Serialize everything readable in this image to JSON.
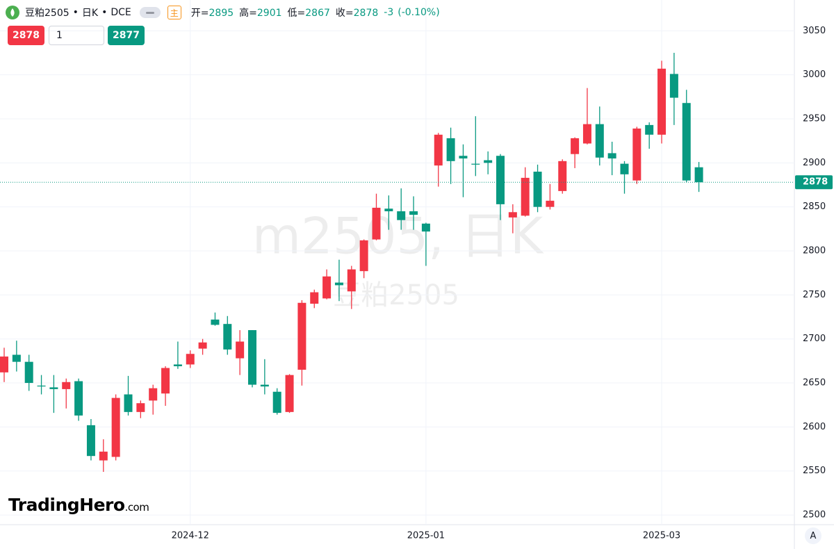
{
  "header": {
    "symbol": "豆粕2505",
    "period": "日K",
    "exchange": "DCE",
    "mode_badge": "主",
    "ohlc": [
      {
        "label": "开=",
        "value": "2895"
      },
      {
        "label": "高=",
        "value": "2901"
      },
      {
        "label": "低=",
        "value": "2867"
      },
      {
        "label": "收=",
        "value": "2878"
      }
    ],
    "change": "-3",
    "change_pct": "(-0.10%)",
    "sell_price": "2878",
    "quantity": "1",
    "buy_price": "2877"
  },
  "watermark": {
    "line1": "m2505, 日K",
    "line2": "豆粕2505"
  },
  "logo": {
    "brand": "TradingHero",
    "suffix": ".com"
  },
  "scale_button": "A",
  "chart_data": {
    "type": "candlestick",
    "categories": [
      null,
      null,
      null,
      null,
      null,
      null,
      null,
      null,
      null,
      null,
      null,
      null,
      null,
      null,
      null,
      "2024-12",
      null,
      null,
      null,
      null,
      null,
      null,
      null,
      null,
      null,
      null,
      null,
      null,
      null,
      null,
      null,
      null,
      null,
      null,
      "2025-01",
      null,
      null,
      null,
      null,
      null,
      null,
      null,
      null,
      null,
      null,
      null,
      null,
      null,
      null,
      null,
      null,
      null,
      null,
      "2025-03",
      null,
      null,
      null
    ],
    "open": [
      2662,
      2682,
      2674,
      2647,
      2645,
      2643,
      2652,
      2602,
      2562,
      2566,
      2637,
      2617,
      2630,
      2638,
      2671,
      2671,
      2689,
      2722,
      2717,
      2678,
      2710,
      2648,
      2640,
      2617,
      2665,
      2740,
      2746,
      2764,
      2754,
      2777,
      2813,
      2848,
      2845,
      2845,
      2831,
      2897,
      2928,
      2908,
      2899,
      2903,
      2908,
      2838,
      2840,
      2890,
      2850,
      2868,
      2910,
      2922,
      2944,
      2911,
      2899,
      2880,
      2943,
      2932,
      3001,
      2968,
      2895
    ],
    "high": [
      2690,
      2698,
      2682,
      2659,
      2659,
      2655,
      2655,
      2609,
      2586,
      2637,
      2658,
      2630,
      2648,
      2669,
      2697,
      2687,
      2700,
      2730,
      2726,
      2710,
      2710,
      2677,
      2644,
      2660,
      2744,
      2756,
      2779,
      2790,
      2783,
      2813,
      2865,
      2863,
      2871,
      2862,
      2832,
      2934,
      2940,
      2921,
      2953,
      2913,
      2910,
      2853,
      2895,
      2898,
      2876,
      2904,
      2929,
      2985,
      2964,
      2924,
      2902,
      2941,
      2946,
      3016,
      3025,
      2983,
      2901
    ],
    "low": [
      2651,
      2663,
      2641,
      2637,
      2616,
      2621,
      2607,
      2562,
      2549,
      2562,
      2613,
      2610,
      2614,
      2624,
      2666,
      2667,
      2682,
      2715,
      2682,
      2659,
      2645,
      2637,
      2614,
      2616,
      2647,
      2735,
      2745,
      2743,
      2734,
      2769,
      2812,
      2824,
      2824,
      2824,
      2783,
      2873,
      2876,
      2861,
      2885,
      2887,
      2835,
      2820,
      2839,
      2844,
      2847,
      2865,
      2894,
      2921,
      2897,
      2886,
      2865,
      2876,
      2916,
      2922,
      2943,
      2878,
      2867
    ],
    "close": [
      2680,
      2674,
      2650,
      2646,
      2643,
      2651,
      2613,
      2567,
      2572,
      2633,
      2617,
      2627,
      2644,
      2667,
      2669,
      2683,
      2696,
      2716,
      2688,
      2697,
      2648,
      2646,
      2616,
      2659,
      2741,
      2753,
      2771,
      2761,
      2779,
      2812,
      2849,
      2845,
      2835,
      2841,
      2822,
      2932,
      2902,
      2905,
      2898,
      2900,
      2853,
      2844,
      2883,
      2850,
      2857,
      2902,
      2928,
      2944,
      2906,
      2905,
      2887,
      2939,
      2932,
      3007,
      2974,
      2880,
      2878
    ],
    "up_color": "#f23645",
    "down_color": "#089981",
    "last_price": 2878,
    "ylim": [
      2489,
      3085
    ],
    "yticks": [
      2500,
      2550,
      2600,
      2650,
      2700,
      2750,
      2800,
      2850,
      2900,
      2950,
      3000,
      3050
    ],
    "grid": true
  }
}
